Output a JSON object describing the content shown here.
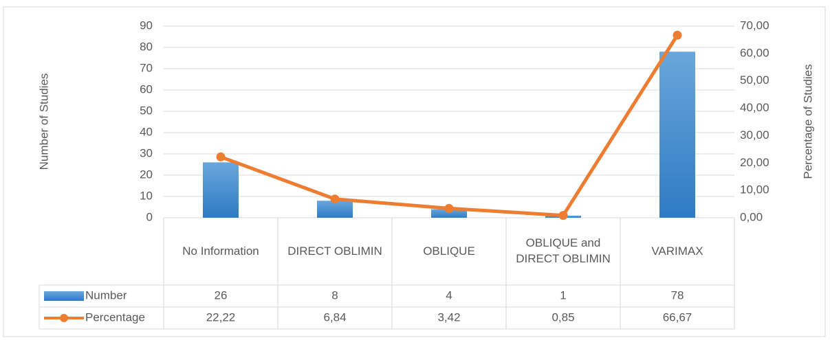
{
  "chart_data": {
    "type": "bar-line",
    "y_label": "Number of Studies",
    "y2_label": "Percentage of Studies",
    "categories": [
      "No Information",
      "DIRECT OBLIMIN",
      "OBLIQUE",
      "OBLIQUE and DIRECT OBLIMIN",
      "VARIMAX"
    ],
    "series": [
      {
        "name": "Number",
        "type": "bar",
        "color": "#4a8fd0",
        "values": [
          26,
          8,
          4,
          1,
          78
        ]
      },
      {
        "name": "Percentage",
        "type": "line",
        "axis": "y2",
        "color": "#ed7d31",
        "values": [
          22.22,
          6.84,
          3.42,
          0.85,
          66.67
        ],
        "value_labels": [
          "22,22",
          "6,84",
          "3,42",
          "0,85",
          "66,67"
        ]
      }
    ],
    "ylim": [
      0,
      90
    ],
    "yticks": [
      0,
      10,
      20,
      30,
      40,
      50,
      60,
      70,
      80,
      90
    ],
    "y2lim": [
      0,
      70
    ],
    "y2ticks": [
      {
        "value": 0,
        "label": "0,00"
      },
      {
        "value": 10,
        "label": "10,00"
      },
      {
        "value": 20,
        "label": "20,00"
      },
      {
        "value": 30,
        "label": "30,00"
      },
      {
        "value": 40,
        "label": "40,00"
      },
      {
        "value": 50,
        "label": "50,00"
      },
      {
        "value": 60,
        "label": "60,00"
      },
      {
        "value": 70,
        "label": "70,00"
      }
    ],
    "grid": true,
    "data_table": true
  }
}
